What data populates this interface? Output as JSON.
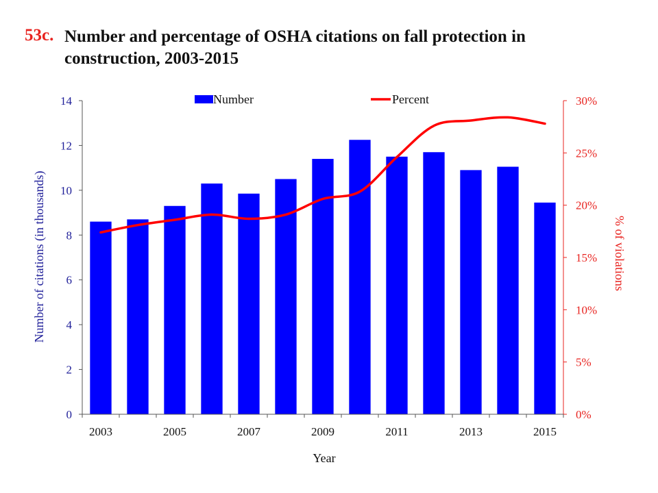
{
  "title": {
    "number": "53c.",
    "text": "Number and percentage of OSHA citations on fall protection in construction, 2003-2015"
  },
  "colors": {
    "bars": "#0000ff",
    "line": "#ff0000",
    "left_axis": "#1f1f99",
    "right_axis": "#e8231f",
    "title_number": "#e8231f"
  },
  "chart_data": {
    "type": "bar",
    "categories": [
      "2003",
      "2004",
      "2005",
      "2006",
      "2007",
      "2008",
      "2009",
      "2010",
      "2011",
      "2012",
      "2013",
      "2014",
      "2015"
    ],
    "x_tick_labels": [
      "2003",
      "2005",
      "2007",
      "2009",
      "2011",
      "2013",
      "2015"
    ],
    "xlabel": "Year",
    "ylabel": "Number of citations (in thousands)",
    "ylabel_right": "% of violations",
    "ylim": [
      0,
      14
    ],
    "y_ticks": [
      "0",
      "2",
      "4",
      "6",
      "8",
      "10",
      "12",
      "14"
    ],
    "y2lim": [
      0,
      30
    ],
    "y2_ticks": [
      "0%",
      "5%",
      "10%",
      "15%",
      "20%",
      "25%",
      "30%"
    ],
    "legend_position": "top",
    "series": [
      {
        "name": "Number",
        "type": "bar",
        "axis": "left",
        "values": [
          8.6,
          8.7,
          9.3,
          10.3,
          9.85,
          10.5,
          11.4,
          12.25,
          11.5,
          11.7,
          10.9,
          11.05,
          9.45
        ]
      },
      {
        "name": "Percent",
        "type": "line",
        "axis": "right",
        "values": [
          17.4,
          18.1,
          18.6,
          19.1,
          18.7,
          19.1,
          20.6,
          21.3,
          24.6,
          27.6,
          28.1,
          28.4,
          27.8
        ]
      }
    ],
    "grid": false
  }
}
